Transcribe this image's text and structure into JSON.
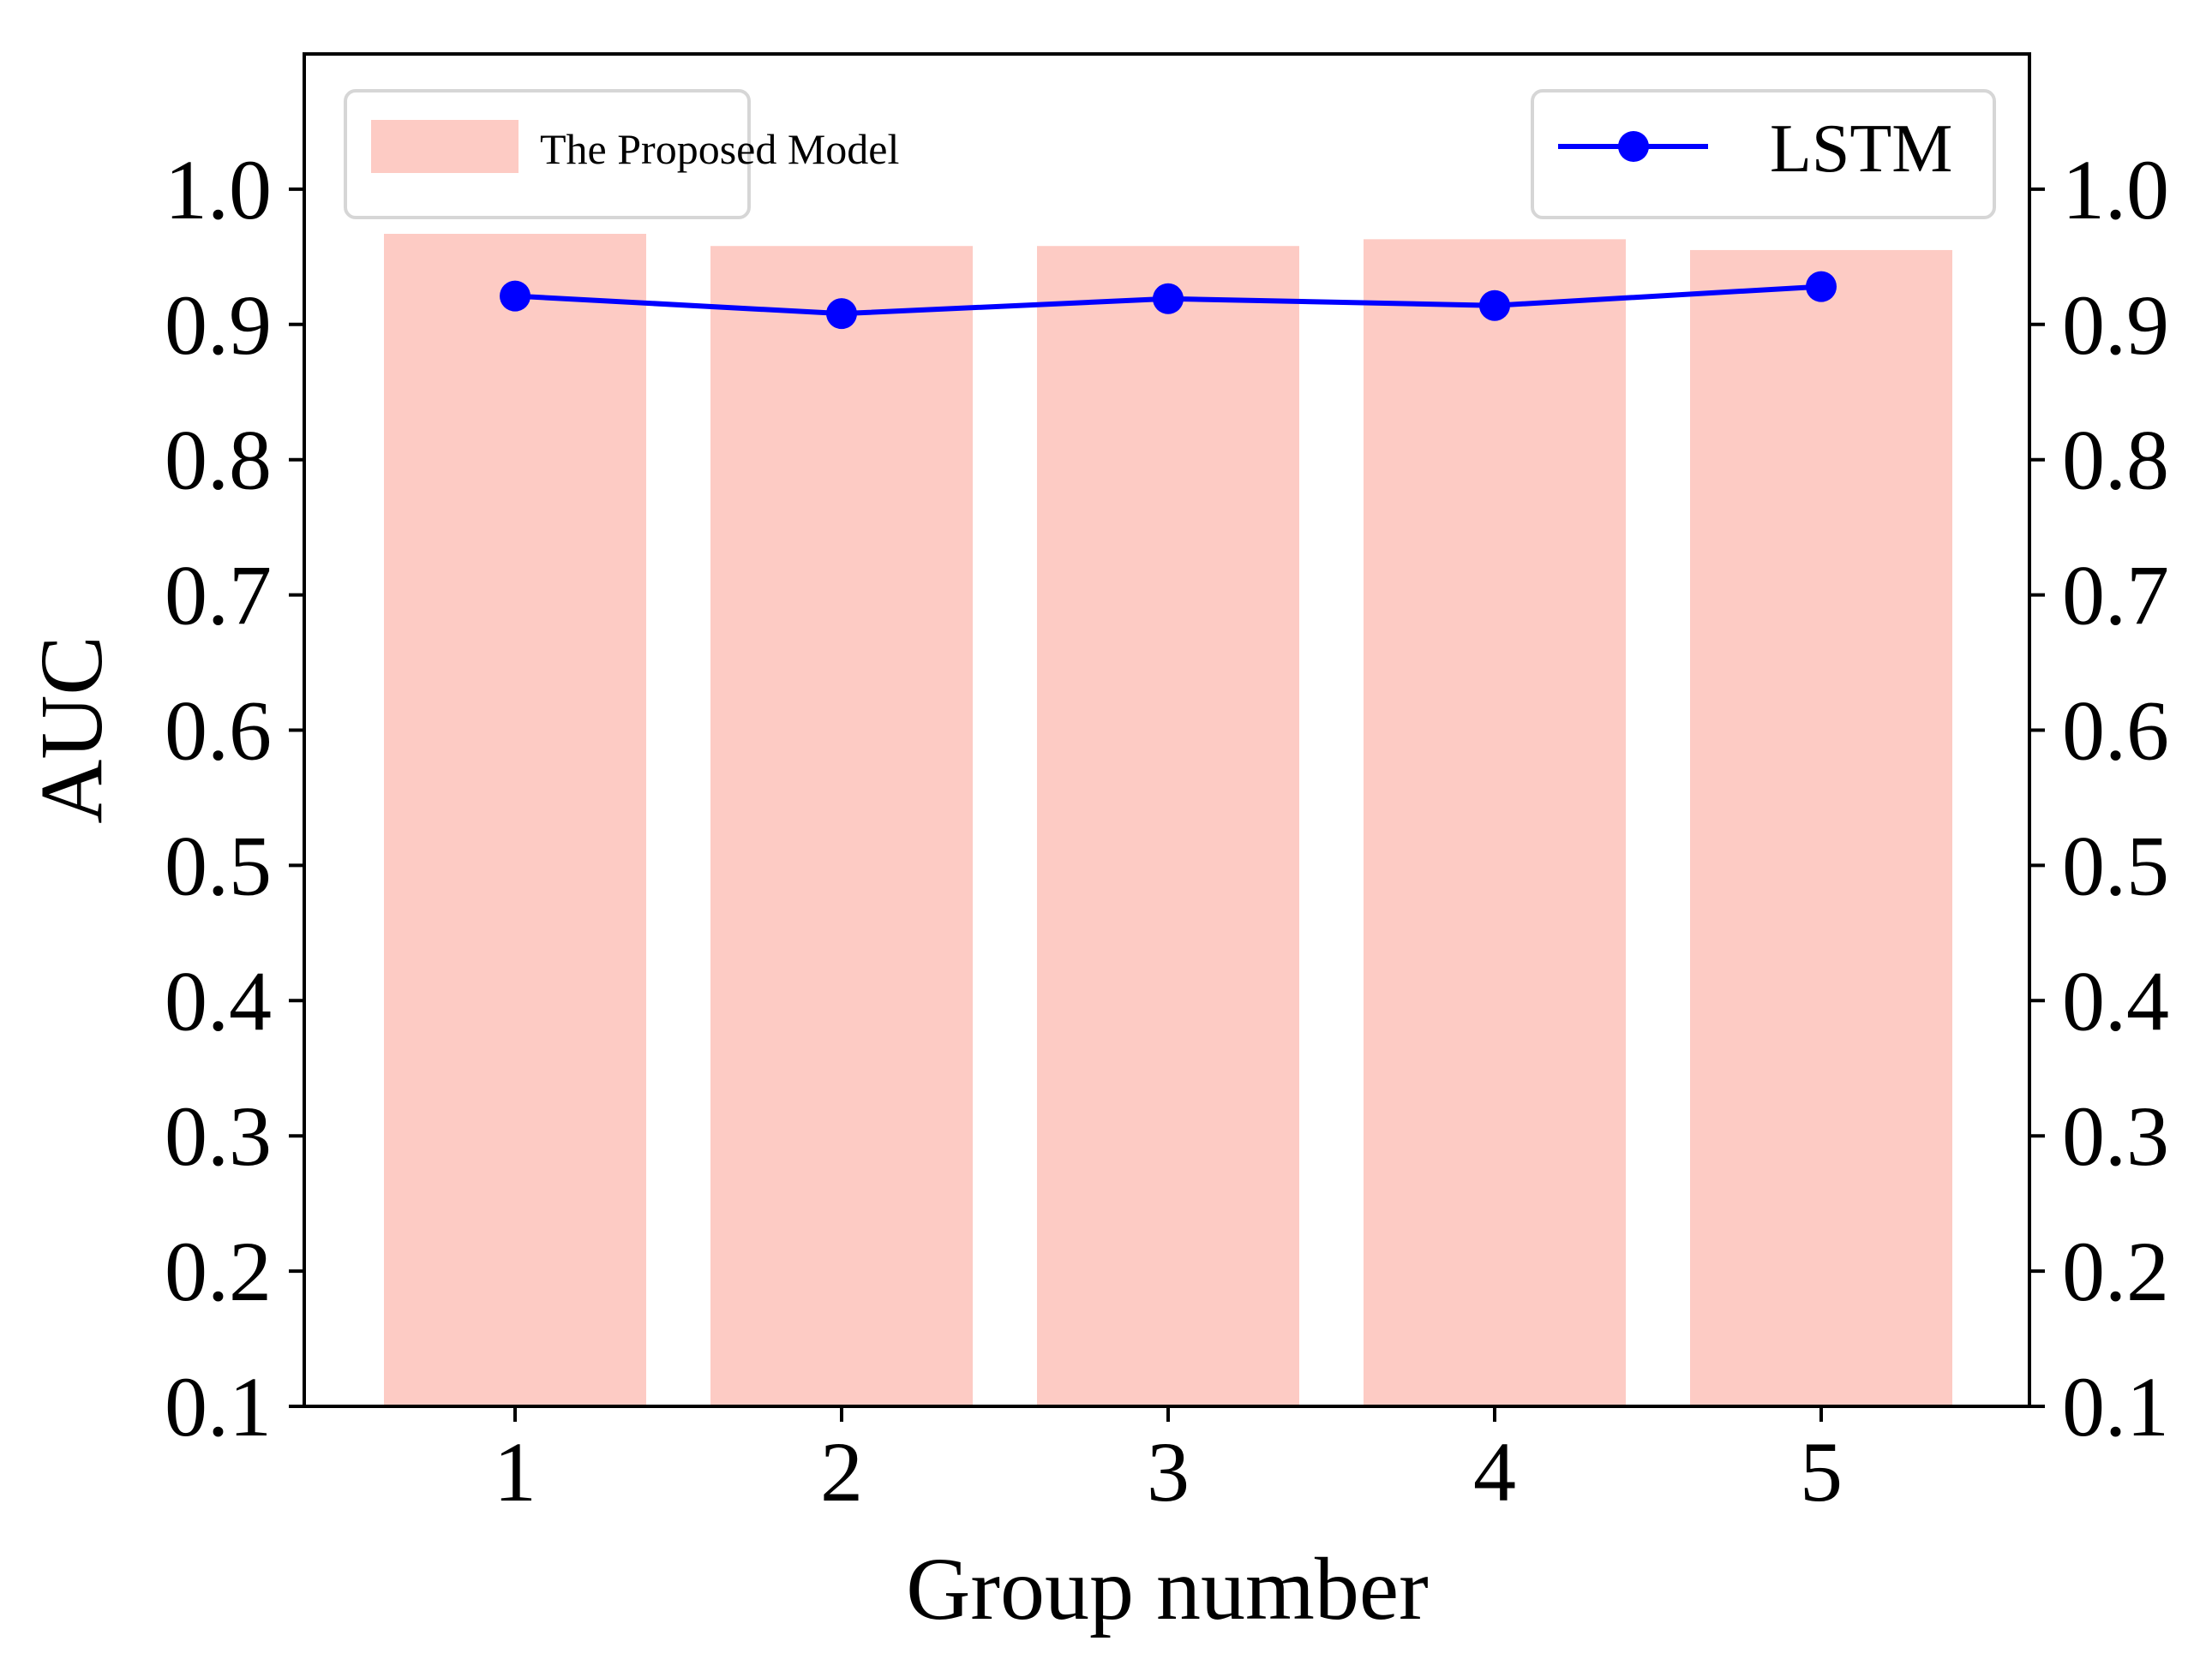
{
  "chart_data": {
    "type": "bar",
    "title": "",
    "xlabel": "Group number",
    "ylabel": "AUC",
    "categories": [
      "1",
      "2",
      "3",
      "4",
      "5"
    ],
    "ylim": [
      0.1,
      1.1
    ],
    "yticks": [
      "0.1",
      "0.2",
      "0.3",
      "0.4",
      "0.5",
      "0.6",
      "0.7",
      "0.8",
      "0.9",
      "1.0"
    ],
    "ytick_values": [
      0.1,
      0.2,
      0.3,
      0.4,
      0.5,
      0.6,
      0.7,
      0.8,
      0.9,
      1.0
    ],
    "right_axis_duplicate": true,
    "grid": false,
    "series": [
      {
        "name": "The Proposed Model",
        "kind": "bar",
        "color": "#fdcbc4",
        "values": [
          0.967,
          0.958,
          0.958,
          0.963,
          0.955
        ],
        "legend_position": "top-left"
      },
      {
        "name": "LSTM",
        "kind": "line",
        "marker": "circle",
        "color": "#0000ff",
        "values": [
          0.921,
          0.908,
          0.919,
          0.914,
          0.928
        ],
        "legend_position": "top-right"
      }
    ]
  }
}
